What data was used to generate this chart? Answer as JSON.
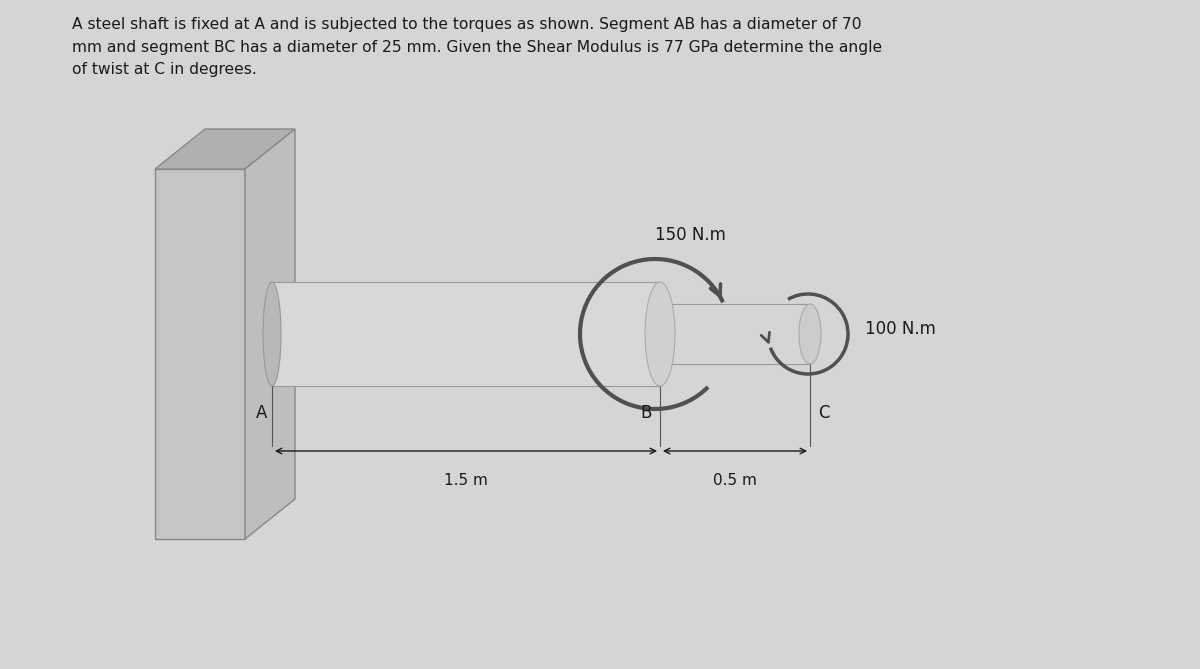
{
  "background_color": "#d5d5d5",
  "text_color": "#1a1a1a",
  "title_text": "A steel shaft is fixed at A and is subjected to the torques as shown. Segment AB has a diameter of 70\nmm and segment BC has a diameter of 25 mm. Given the Shear Modulus is 77 GPa determine the angle\nof twist at C in degrees.",
  "torque_B_label": "150 N.m",
  "torque_C_label": "100 N.m",
  "label_A": "A",
  "label_B": "B",
  "label_C": "C",
  "dim_AB": "1.5 m",
  "dim_BC": "0.5 m",
  "wall_front_color": "#c5c5c5",
  "wall_top_color": "#b0b0b0",
  "wall_side_color": "#bebebe",
  "shaft_body_color": "#d8d8d8",
  "shaft_end_color": "#c8c8c8",
  "shaft_shadow_color": "#b8b8b8",
  "arrow_color": "#505050",
  "line_color": "#555555"
}
